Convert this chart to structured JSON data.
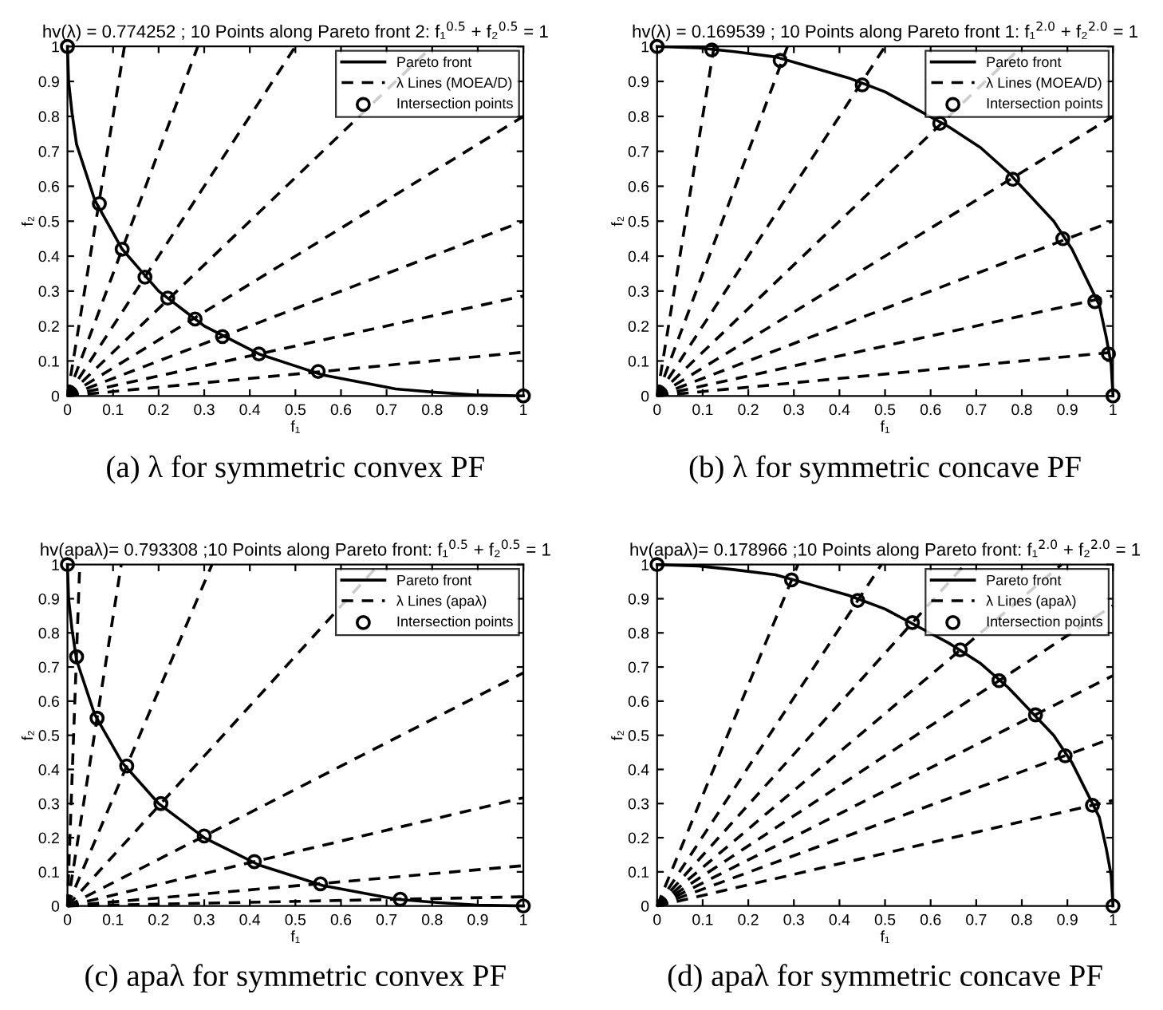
{
  "chart_data": [
    {
      "type": "line",
      "title": "hv(λ) = 0.774252 ; 10 Points along Pareto front 2: f₁$^{0.5}$ + f₂$^{0.5}$ = 1",
      "xlabel": "f₁",
      "ylabel": "f₂",
      "annotations": [
        "(a) λ for symmetric convex PF"
      ],
      "xlim": [
        0,
        1
      ],
      "ylim": [
        0,
        1
      ],
      "xticks": [
        0,
        0.1,
        0.2,
        0.3,
        0.4,
        0.5,
        0.6,
        0.7,
        0.8,
        0.9,
        1
      ],
      "yticks": [
        0,
        0.1,
        0.2,
        0.3,
        0.4,
        0.5,
        0.6,
        0.7,
        0.8,
        0.9,
        1
      ],
      "grid": false,
      "legend": "top right",
      "series": [
        {
          "name": "Pareto front",
          "type": "line",
          "line_style": "solid",
          "color": "#000000",
          "x": [
            0,
            0.0025,
            0.01,
            0.02,
            0.04,
            0.06,
            0.09,
            0.12,
            0.16,
            0.2,
            0.25,
            0.3,
            0.36,
            0.42,
            0.49,
            0.56,
            0.64,
            0.72,
            0.81,
            0.9,
            1
          ],
          "values": [
            1,
            0.9,
            0.81,
            0.72,
            0.64,
            0.56,
            0.49,
            0.42,
            0.36,
            0.3,
            0.25,
            0.2,
            0.16,
            0.12,
            0.09,
            0.06,
            0.04,
            0.02,
            0.01,
            0.0025,
            0
          ]
        },
        {
          "name": "λ Lines (MOEA/D)",
          "type": "line",
          "line_style": "dashed",
          "color": "#000000",
          "x": [
            0,
            0.125
          ],
          "values": [
            0,
            1
          ]
        },
        {
          "type": "line",
          "line_style": "dashed",
          "color": "#000000",
          "x": [
            0,
            0.286
          ],
          "values": [
            0,
            1
          ]
        },
        {
          "type": "line",
          "line_style": "dashed",
          "color": "#000000",
          "x": [
            0,
            0.5
          ],
          "values": [
            0,
            1
          ]
        },
        {
          "type": "line",
          "line_style": "dashed",
          "color": "#000000",
          "x": [
            0,
            0.8
          ],
          "values": [
            0,
            1
          ]
        },
        {
          "type": "line",
          "line_style": "dashed",
          "color": "#000000",
          "x": [
            0,
            1
          ],
          "values": [
            0,
            0.8
          ]
        },
        {
          "type": "line",
          "line_style": "dashed",
          "color": "#000000",
          "x": [
            0,
            1
          ],
          "values": [
            0,
            0.5
          ]
        },
        {
          "type": "line",
          "line_style": "dashed",
          "color": "#000000",
          "x": [
            0,
            1
          ],
          "values": [
            0,
            0.286
          ]
        },
        {
          "type": "line",
          "line_style": "dashed",
          "color": "#000000",
          "x": [
            0,
            1
          ],
          "values": [
            0,
            0.125
          ]
        },
        {
          "name": "Intersection points",
          "type": "scatter",
          "marker": "circle",
          "color": "#000000",
          "x": [
            0,
            0.07,
            0.12,
            0.17,
            0.22,
            0.28,
            0.34,
            0.42,
            0.55,
            1
          ],
          "values": [
            1,
            0.55,
            0.42,
            0.34,
            0.28,
            0.22,
            0.17,
            0.12,
            0.07,
            0
          ]
        }
      ]
    },
    {
      "type": "line",
      "title": "hv(λ) = 0.169539 ; 10 Points along Pareto front 1: f₁$^{2.0}$ + f₂$^{2.0}$ = 1",
      "xlabel": "f₁",
      "ylabel": "f₂",
      "annotations": [
        "(b) λ for symmetric concave PF"
      ],
      "xlim": [
        0,
        1
      ],
      "ylim": [
        0,
        1
      ],
      "xticks": [
        0,
        0.1,
        0.2,
        0.3,
        0.4,
        0.5,
        0.6,
        0.7,
        0.8,
        0.9,
        1
      ],
      "yticks": [
        0,
        0.1,
        0.2,
        0.3,
        0.4,
        0.5,
        0.6,
        0.7,
        0.8,
        0.9,
        1
      ],
      "grid": false,
      "legend": "top right",
      "series": [
        {
          "name": "Pareto front",
          "type": "line",
          "line_style": "solid",
          "color": "#000000",
          "x": [
            0,
            0.09,
            0.17,
            0.26,
            0.34,
            0.42,
            0.5,
            0.57,
            0.64,
            0.71,
            0.77,
            0.82,
            0.87,
            0.91,
            0.94,
            0.97,
            0.985,
            0.996,
            1
          ],
          "values": [
            1,
            0.996,
            0.985,
            0.97,
            0.94,
            0.91,
            0.87,
            0.82,
            0.77,
            0.71,
            0.64,
            0.57,
            0.5,
            0.42,
            0.34,
            0.26,
            0.17,
            0.09,
            0
          ]
        },
        {
          "name": "λ Lines (MOEA/D)",
          "type": "line",
          "line_style": "dashed",
          "color": "#000000",
          "x": [
            0,
            0.125
          ],
          "values": [
            0,
            1
          ]
        },
        {
          "type": "line",
          "line_style": "dashed",
          "color": "#000000",
          "x": [
            0,
            0.286
          ],
          "values": [
            0,
            1
          ]
        },
        {
          "type": "line",
          "line_style": "dashed",
          "color": "#000000",
          "x": [
            0,
            0.5
          ],
          "values": [
            0,
            1
          ]
        },
        {
          "type": "line",
          "line_style": "dashed",
          "color": "#000000",
          "x": [
            0,
            0.8
          ],
          "values": [
            0,
            1
          ]
        },
        {
          "type": "line",
          "line_style": "dashed",
          "color": "#000000",
          "x": [
            0,
            1
          ],
          "values": [
            0,
            0.8
          ]
        },
        {
          "type": "line",
          "line_style": "dashed",
          "color": "#000000",
          "x": [
            0,
            1
          ],
          "values": [
            0,
            0.5
          ]
        },
        {
          "type": "line",
          "line_style": "dashed",
          "color": "#000000",
          "x": [
            0,
            1
          ],
          "values": [
            0,
            0.286
          ]
        },
        {
          "type": "line",
          "line_style": "dashed",
          "color": "#000000",
          "x": [
            0,
            1
          ],
          "values": [
            0,
            0.125
          ]
        },
        {
          "name": "Intersection points",
          "type": "scatter",
          "marker": "circle",
          "color": "#000000",
          "x": [
            0,
            0.12,
            0.27,
            0.45,
            0.62,
            0.78,
            0.89,
            0.96,
            0.99,
            1
          ],
          "values": [
            1,
            0.99,
            0.96,
            0.89,
            0.78,
            0.62,
            0.45,
            0.27,
            0.12,
            0
          ]
        }
      ]
    },
    {
      "type": "line",
      "title": "hv(apaλ)= 0.793308 ;10 Points along Pareto front: f₁$^{0.5}$ + f₂$^{0.5}$ = 1",
      "xlabel": "f₁",
      "ylabel": "f₂",
      "annotations": [
        "(c) apaλ for symmetric convex PF"
      ],
      "xlim": [
        0,
        1
      ],
      "ylim": [
        0,
        1
      ],
      "xticks": [
        0,
        0.1,
        0.2,
        0.3,
        0.4,
        0.5,
        0.6,
        0.7,
        0.8,
        0.9,
        1
      ],
      "yticks": [
        0,
        0.1,
        0.2,
        0.3,
        0.4,
        0.5,
        0.6,
        0.7,
        0.8,
        0.9,
        1
      ],
      "grid": false,
      "legend": "top right",
      "series": [
        {
          "name": "Pareto front",
          "type": "line",
          "line_style": "solid",
          "color": "#000000",
          "x": [
            0,
            0.0025,
            0.01,
            0.02,
            0.04,
            0.06,
            0.09,
            0.12,
            0.16,
            0.2,
            0.25,
            0.3,
            0.36,
            0.42,
            0.49,
            0.56,
            0.64,
            0.72,
            0.81,
            0.9,
            1
          ],
          "values": [
            1,
            0.9,
            0.81,
            0.72,
            0.64,
            0.56,
            0.49,
            0.42,
            0.36,
            0.3,
            0.25,
            0.2,
            0.16,
            0.12,
            0.09,
            0.06,
            0.04,
            0.02,
            0.01,
            0.0025,
            0
          ]
        },
        {
          "name": "λ Lines (apaλ)",
          "type": "line",
          "line_style": "dashed",
          "color": "#000000",
          "x": [
            0,
            0.027
          ],
          "values": [
            0,
            1
          ]
        },
        {
          "type": "line",
          "line_style": "dashed",
          "color": "#000000",
          "x": [
            0,
            0.118
          ],
          "values": [
            0,
            1
          ]
        },
        {
          "type": "line",
          "line_style": "dashed",
          "color": "#000000",
          "x": [
            0,
            0.317
          ],
          "values": [
            0,
            1
          ]
        },
        {
          "type": "line",
          "line_style": "dashed",
          "color": "#000000",
          "x": [
            0,
            0.683
          ],
          "values": [
            0,
            1
          ]
        },
        {
          "type": "line",
          "line_style": "dashed",
          "color": "#000000",
          "x": [
            0,
            1
          ],
          "values": [
            0,
            0.683
          ]
        },
        {
          "type": "line",
          "line_style": "dashed",
          "color": "#000000",
          "x": [
            0,
            1
          ],
          "values": [
            0,
            0.317
          ]
        },
        {
          "type": "line",
          "line_style": "dashed",
          "color": "#000000",
          "x": [
            0,
            1
          ],
          "values": [
            0,
            0.118
          ]
        },
        {
          "type": "line",
          "line_style": "dashed",
          "color": "#000000",
          "x": [
            0,
            1
          ],
          "values": [
            0,
            0.027
          ]
        },
        {
          "name": "Intersection points",
          "type": "scatter",
          "marker": "circle",
          "color": "#000000",
          "x": [
            0,
            0.02,
            0.065,
            0.13,
            0.205,
            0.3,
            0.41,
            0.555,
            0.73,
            1
          ],
          "values": [
            1,
            0.73,
            0.55,
            0.41,
            0.3,
            0.205,
            0.13,
            0.065,
            0.02,
            0
          ]
        }
      ]
    },
    {
      "type": "line",
      "title": "hv(apaλ)= 0.178966 ;10 Points along Pareto front: f₁$^{2.0}$ + f₂$^{2.0}$ = 1",
      "xlabel": "f₁",
      "ylabel": "f₂",
      "annotations": [
        "(d) apaλ for symmetric concave PF"
      ],
      "xlim": [
        0,
        1
      ],
      "ylim": [
        0,
        1
      ],
      "xticks": [
        0,
        0.1,
        0.2,
        0.3,
        0.4,
        0.5,
        0.6,
        0.7,
        0.8,
        0.9,
        1
      ],
      "yticks": [
        0,
        0.1,
        0.2,
        0.3,
        0.4,
        0.5,
        0.6,
        0.7,
        0.8,
        0.9,
        1
      ],
      "grid": false,
      "legend": "top right",
      "series": [
        {
          "name": "Pareto front",
          "type": "line",
          "line_style": "solid",
          "color": "#000000",
          "x": [
            0,
            0.09,
            0.17,
            0.26,
            0.34,
            0.42,
            0.5,
            0.57,
            0.64,
            0.71,
            0.77,
            0.82,
            0.87,
            0.91,
            0.94,
            0.97,
            0.985,
            0.996,
            1
          ],
          "values": [
            1,
            0.996,
            0.985,
            0.97,
            0.94,
            0.91,
            0.87,
            0.82,
            0.77,
            0.71,
            0.64,
            0.57,
            0.5,
            0.42,
            0.34,
            0.26,
            0.17,
            0.09,
            0
          ]
        },
        {
          "name": "λ Lines (apaλ)",
          "type": "line",
          "line_style": "dashed",
          "color": "#000000",
          "x": [
            0,
            0.309
          ],
          "values": [
            0,
            1
          ]
        },
        {
          "type": "line",
          "line_style": "dashed",
          "color": "#000000",
          "x": [
            0,
            0.492
          ],
          "values": [
            0,
            1
          ]
        },
        {
          "type": "line",
          "line_style": "dashed",
          "color": "#000000",
          "x": [
            0,
            0.675
          ],
          "values": [
            0,
            1
          ]
        },
        {
          "type": "line",
          "line_style": "dashed",
          "color": "#000000",
          "x": [
            0,
            0.887
          ],
          "values": [
            0,
            1
          ]
        },
        {
          "type": "line",
          "line_style": "dashed",
          "color": "#000000",
          "x": [
            0,
            1
          ],
          "values": [
            0,
            0.88
          ]
        },
        {
          "type": "line",
          "line_style": "dashed",
          "color": "#000000",
          "x": [
            0,
            1
          ],
          "values": [
            0,
            0.675
          ]
        },
        {
          "type": "line",
          "line_style": "dashed",
          "color": "#000000",
          "x": [
            0,
            1
          ],
          "values": [
            0,
            0.492
          ]
        },
        {
          "type": "line",
          "line_style": "dashed",
          "color": "#000000",
          "x": [
            0,
            1
          ],
          "values": [
            0,
            0.309
          ]
        },
        {
          "name": "Intersection points",
          "type": "scatter",
          "marker": "circle",
          "color": "#000000",
          "x": [
            0,
            0.295,
            0.44,
            0.56,
            0.665,
            0.75,
            0.83,
            0.895,
            0.955,
            1
          ],
          "values": [
            1,
            0.955,
            0.895,
            0.83,
            0.75,
            0.66,
            0.56,
            0.44,
            0.295,
            0
          ]
        }
      ]
    }
  ]
}
